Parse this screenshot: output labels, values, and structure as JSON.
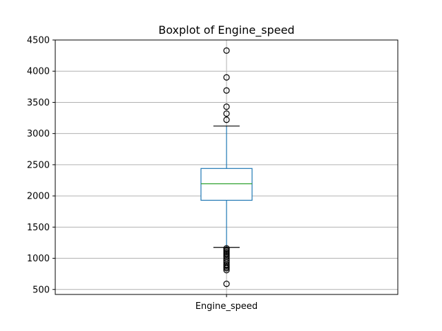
{
  "chart_data": {
    "type": "boxplot",
    "title": "Boxplot of Engine_speed",
    "categories": [
      "Engine_speed"
    ],
    "ylim": [
      420,
      4500
    ],
    "yticks": [
      500,
      1000,
      1500,
      2000,
      2500,
      3000,
      3500,
      4000,
      4500
    ],
    "grid": true,
    "box": {
      "q1": 1930,
      "median": 2195,
      "q3": 2440,
      "whisker_low": 1175,
      "whisker_high": 3120
    },
    "outliers": [
      4330,
      3900,
      3690,
      3430,
      3320,
      3220,
      1160,
      1140,
      1120,
      1100,
      1080,
      1060,
      1040,
      1020,
      990,
      960,
      930,
      900,
      880,
      860,
      840,
      810,
      590
    ],
    "colors": {
      "box": "#1f77b4",
      "median": "#2ca02c",
      "whisker": "#1f77b4",
      "cap": "#000000",
      "outlier": "#000000",
      "grid": "#b0b0b0"
    }
  }
}
